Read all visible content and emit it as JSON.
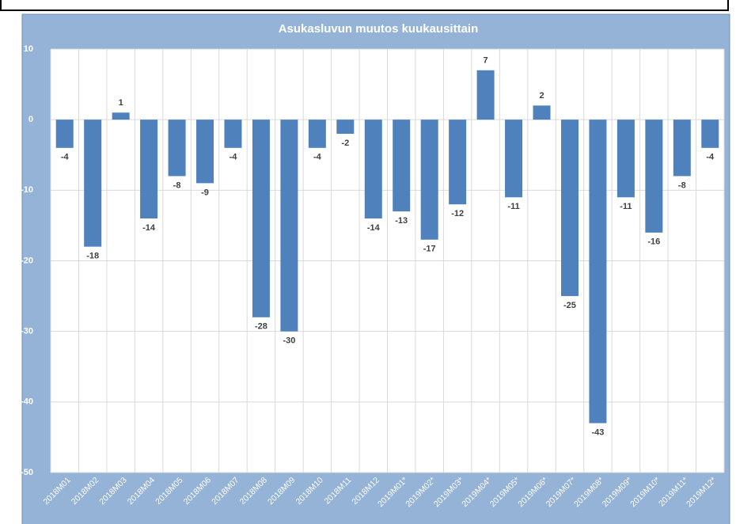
{
  "chart_data": {
    "type": "bar",
    "title": "Asukasluvun muutos kuukausittain",
    "categories": [
      "2018M01",
      "2018M02",
      "2018M03",
      "2018M04",
      "2018M05",
      "2018M06",
      "2018M07",
      "2018M08",
      "2018M09",
      "2018M10",
      "2018M11",
      "2018M12",
      "2019M01*",
      "2019M02*",
      "2019M03*",
      "2019M04*",
      "2019M05*",
      "2019M06*",
      "2019M07*",
      "2019M08*",
      "2019M09*",
      "2019M10*",
      "2019M11*",
      "2019M12*"
    ],
    "values": [
      -4,
      -18,
      1,
      -14,
      -8,
      -9,
      -4,
      -28,
      -30,
      -4,
      -2,
      -14,
      -13,
      -17,
      -12,
      7,
      -11,
      2,
      -25,
      -43,
      -11,
      -16,
      -8,
      -4
    ],
    "color": "#4f81bd",
    "ylim": [
      -50,
      10
    ],
    "yticks": [
      -50,
      -40,
      -30,
      -20,
      -10,
      0,
      10
    ],
    "grid": true
  }
}
